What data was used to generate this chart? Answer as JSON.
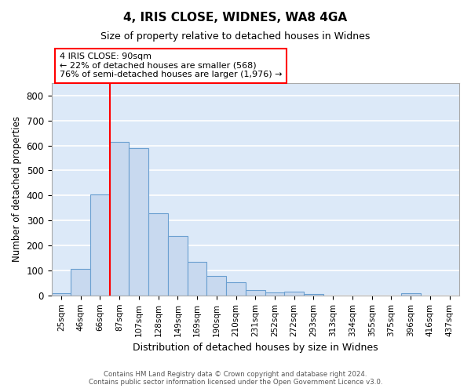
{
  "title1": "4, IRIS CLOSE, WIDNES, WA8 4GA",
  "title2": "Size of property relative to detached houses in Widnes",
  "xlabel": "Distribution of detached houses by size in Widnes",
  "ylabel": "Number of detached properties",
  "categories": [
    "25sqm",
    "46sqm",
    "66sqm",
    "87sqm",
    "107sqm",
    "128sqm",
    "149sqm",
    "169sqm",
    "190sqm",
    "210sqm",
    "231sqm",
    "252sqm",
    "272sqm",
    "293sqm",
    "313sqm",
    "334sqm",
    "355sqm",
    "375sqm",
    "396sqm",
    "416sqm",
    "437sqm"
  ],
  "values": [
    8,
    105,
    405,
    615,
    590,
    330,
    238,
    133,
    78,
    53,
    22,
    13,
    16,
    6,
    0,
    0,
    0,
    0,
    8,
    0,
    0
  ],
  "bar_color": "#c8d9ef",
  "bar_edge_color": "#6a9fd0",
  "background_color": "#dce9f8",
  "grid_color": "#ffffff",
  "vline_x": 2.5,
  "vline_color": "red",
  "annotation_line1": "4 IRIS CLOSE: 90sqm",
  "annotation_line2": "← 22% of detached houses are smaller (568)",
  "annotation_line3": "76% of semi-detached houses are larger (1,976) →",
  "annotation_box_color": "red",
  "ylim": [
    0,
    850
  ],
  "yticks": [
    0,
    100,
    200,
    300,
    400,
    500,
    600,
    700,
    800
  ],
  "footer1": "Contains HM Land Registry data © Crown copyright and database right 2024.",
  "footer2": "Contains public sector information licensed under the Open Government Licence v3.0."
}
